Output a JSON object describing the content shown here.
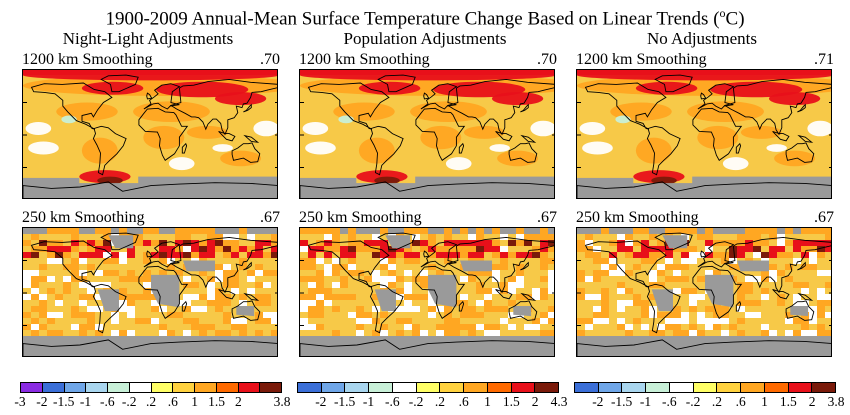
{
  "title_main": "1900-2009 Annual-Mean Surface Temperature Change Based on Linear Trends (",
  "title_sup": "o",
  "title_end": "C)",
  "columns": [
    {
      "title": "Night-Light Adjustments",
      "top_label": "1200 km Smoothing",
      "top_value": ".70",
      "bottom_label": "250 km Smoothing",
      "bottom_value": ".67",
      "scale_ticks": [
        "-3",
        "-2",
        "-1.5",
        "-1",
        "-.6",
        "-.2",
        ".2",
        ".6",
        "1",
        "1.5",
        "2",
        "3.8"
      ]
    },
    {
      "title": "Population Adjustments",
      "top_label": "1200 km Smoothing",
      "top_value": ".70",
      "bottom_label": "250 km Smoothing",
      "bottom_value": ".67",
      "scale_ticks": [
        "-2",
        "-1.5",
        "-1",
        "-.6",
        "-.2",
        ".2",
        ".6",
        "1",
        "1.5",
        "2",
        "4.3"
      ]
    },
    {
      "title": "No Adjustments",
      "top_label": "1200 km Smoothing",
      "top_value": ".71",
      "bottom_label": "250 km Smoothing",
      "bottom_value": ".67",
      "scale_ticks": [
        "-2",
        "-1.5",
        "-1",
        "-.6",
        "-.2",
        ".2",
        ".6",
        "1",
        "1.5",
        "2",
        "3.8"
      ]
    }
  ],
  "scale_colors": [
    "#8a2be2",
    "#3b6fd8",
    "#6fa6e8",
    "#a9d6ef",
    "#c8f0d8",
    "#ffffff",
    "#ffff66",
    "#ffd23f",
    "#ffa722",
    "#ff6a00",
    "#e8101a",
    "#7a1a0a"
  ],
  "colors": {
    "missing": "#9a9a9a",
    "base_warm": "#f7c948",
    "warm_mid": "#ffa722",
    "warm_hot": "#e8101a",
    "warm_hottest": "#7a1a0a",
    "neutral": "#ffffff",
    "cool_light": "#c8f0d8",
    "cool": "#a9d6ef",
    "coast": "#000000"
  }
}
